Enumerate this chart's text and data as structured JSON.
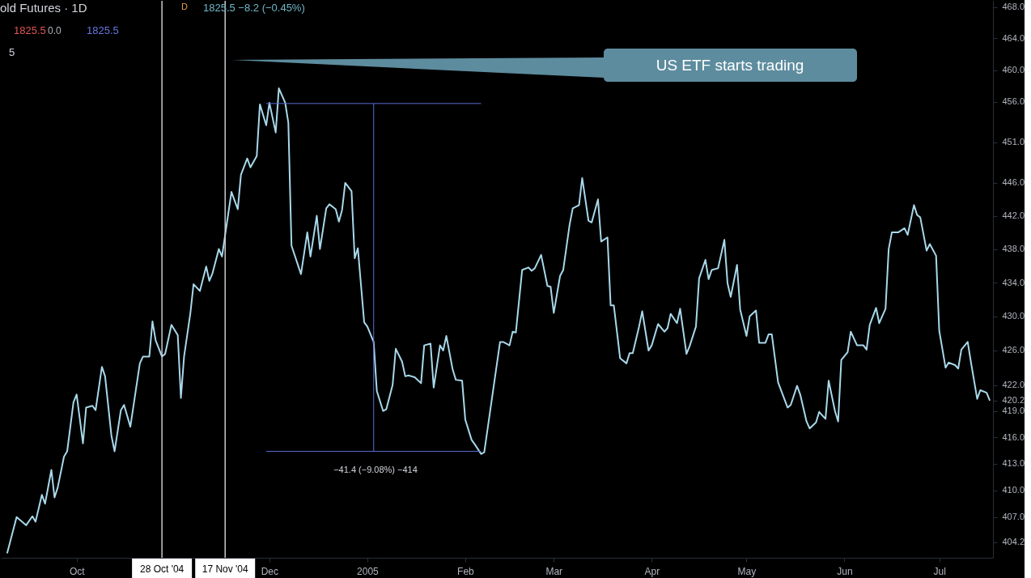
{
  "chart_data": {
    "type": "line",
    "log": "y",
    "xlim": [
      "2004-09-07",
      "2005-07-18"
    ],
    "xticks": [
      {
        "value": "2004-10-01",
        "label": "Oct"
      },
      {
        "value": "2004-12-01",
        "label": "Dec"
      },
      {
        "value": "2005-01-01",
        "label": "2005"
      },
      {
        "value": "2005-02-01",
        "label": "Feb"
      },
      {
        "value": "2005-03-01",
        "label": "Mar"
      },
      {
        "value": "2005-04-01",
        "label": "Apr"
      },
      {
        "value": "2005-05-01",
        "label": "May"
      },
      {
        "value": "2005-06-01",
        "label": "Jun"
      },
      {
        "value": "2005-07-01",
        "label": "Jul"
      }
    ],
    "ylim": [
      402.5,
      468.8
    ],
    "yticks": [
      {
        "value": 404.2,
        "label": "404.2"
      },
      {
        "value": 407,
        "label": "407.0"
      },
      {
        "value": 410,
        "label": "410.0"
      },
      {
        "value": 413,
        "label": "413.0"
      },
      {
        "value": 416,
        "label": "416.0"
      },
      {
        "value": 419,
        "label": "419.0"
      },
      {
        "value": 420.2,
        "label": "420.2"
      },
      {
        "value": 422,
        "label": "422.0"
      },
      {
        "value": 426,
        "label": "426.0"
      },
      {
        "value": 430,
        "label": "430.0"
      },
      {
        "value": 434,
        "label": "434.0"
      },
      {
        "value": 438,
        "label": "438.0"
      },
      {
        "value": 442,
        "label": "442.0"
      },
      {
        "value": 446,
        "label": "446.0"
      },
      {
        "value": 451,
        "label": "451.0"
      },
      {
        "value": 456,
        "label": "456.0"
      },
      {
        "value": 460,
        "label": "460.0"
      },
      {
        "value": 464,
        "label": "464.0"
      },
      {
        "value": 468,
        "label": "468.0"
      }
    ],
    "series": [
      {
        "color": "#a8d8ea",
        "x": [
          "2004-09-09",
          "2004-09-12",
          "2004-09-15",
          "2004-09-17",
          "2004-09-18",
          "2004-09-20",
          "2004-09-21",
          "2004-09-23",
          "2004-09-24",
          "2004-09-25",
          "2004-09-27",
          "2004-09-28",
          "2004-09-30",
          "2004-10-01",
          "2004-10-03",
          "2004-10-04",
          "2004-10-06",
          "2004-10-07",
          "2004-10-09",
          "2004-10-10",
          "2004-10-12",
          "2004-10-13",
          "2004-10-15",
          "2004-10-16",
          "2004-10-18",
          "2004-10-21",
          "2004-10-22",
          "2004-10-24",
          "2004-10-25",
          "2004-10-26",
          "2004-10-28",
          "2004-10-29",
          "2004-10-31",
          "2004-11-02",
          "2004-11-03",
          "2004-11-04",
          "2004-11-06",
          "2004-11-07",
          "2004-11-09",
          "2004-11-11",
          "2004-11-12",
          "2004-11-13",
          "2004-11-15",
          "2004-11-16",
          "2004-11-19",
          "2004-11-21",
          "2004-11-22",
          "2004-11-24",
          "2004-11-25",
          "2004-11-27",
          "2004-11-28",
          "2004-11-30",
          "2004-12-01",
          "2004-12-03",
          "2004-12-04",
          "2004-12-06",
          "2004-12-07",
          "2004-12-08",
          "2004-12-11",
          "2004-12-13",
          "2004-12-14",
          "2004-12-16",
          "2004-12-17",
          "2004-12-19",
          "2004-12-20",
          "2004-12-22",
          "2004-12-23",
          "2004-12-24",
          "2004-12-25",
          "2004-12-27",
          "2004-12-28",
          "2004-12-29",
          "2004-12-31",
          "2005-01-01",
          "2005-01-03",
          "2005-01-04",
          "2005-01-06",
          "2005-01-07",
          "2005-01-09",
          "2005-01-10",
          "2005-01-12",
          "2005-01-13",
          "2005-01-14",
          "2005-01-16",
          "2005-01-18",
          "2005-01-19",
          "2005-01-21",
          "2005-01-22",
          "2005-01-24",
          "2005-01-25",
          "2005-01-26",
          "2005-01-28",
          "2005-01-29",
          "2005-01-31",
          "2005-02-01",
          "2005-02-03",
          "2005-02-04",
          "2005-02-06",
          "2005-02-07",
          "2005-02-12",
          "2005-02-13",
          "2005-02-15",
          "2005-02-16",
          "2005-02-17",
          "2005-02-19",
          "2005-02-21",
          "2005-02-22",
          "2005-02-23",
          "2005-02-25",
          "2005-02-27",
          "2005-02-28",
          "2005-03-01",
          "2005-03-03",
          "2005-03-04",
          "2005-03-06",
          "2005-03-07",
          "2005-03-09",
          "2005-03-10",
          "2005-03-12",
          "2005-03-13",
          "2005-03-15",
          "2005-03-16",
          "2005-03-18",
          "2005-03-19",
          "2005-03-20",
          "2005-03-22",
          "2005-03-24",
          "2005-03-25",
          "2005-03-26",
          "2005-03-28",
          "2005-03-29",
          "2005-03-31",
          "2005-04-01",
          "2005-04-03",
          "2005-04-05",
          "2005-04-06",
          "2005-04-07",
          "2005-04-09",
          "2005-04-10",
          "2005-04-12",
          "2005-04-13",
          "2005-04-15",
          "2005-04-16",
          "2005-04-18",
          "2005-04-19",
          "2005-04-20",
          "2005-04-22",
          "2005-04-24",
          "2005-04-25",
          "2005-04-26",
          "2005-04-28",
          "2005-04-29",
          "2005-05-01",
          "2005-05-02",
          "2005-05-04",
          "2005-05-05",
          "2005-05-07",
          "2005-05-08",
          "2005-05-09",
          "2005-05-11",
          "2005-05-14",
          "2005-05-15",
          "2005-05-17",
          "2005-05-18",
          "2005-05-20",
          "2005-05-21",
          "2005-05-23",
          "2005-05-24",
          "2005-05-26",
          "2005-05-27",
          "2005-05-29",
          "2005-05-30",
          "2005-05-31",
          "2005-06-02",
          "2005-06-03",
          "2005-06-05",
          "2005-06-07",
          "2005-06-08",
          "2005-06-09",
          "2005-06-11",
          "2005-06-12",
          "2005-06-14",
          "2005-06-15",
          "2005-06-16",
          "2005-06-18",
          "2005-06-20",
          "2005-06-21",
          "2005-06-23",
          "2005-06-24",
          "2005-06-25",
          "2005-06-27",
          "2005-06-28",
          "2005-06-30",
          "2005-07-01",
          "2005-07-03",
          "2005-07-04",
          "2005-07-06",
          "2005-07-07",
          "2005-07-08",
          "2005-07-10",
          "2005-07-11",
          "2005-07-13",
          "2005-07-14",
          "2005-07-16",
          "2005-07-17"
        ],
        "values": [
          403.0,
          407.0,
          406.1,
          407.1,
          406.5,
          409.5,
          408.5,
          412.3,
          409.2,
          410.3,
          413.8,
          414.4,
          420.0,
          420.9,
          415.3,
          419.4,
          419.6,
          419.1,
          424.1,
          423.0,
          416.2,
          414.4,
          419.1,
          419.7,
          417.2,
          424.5,
          425.3,
          425.3,
          429.4,
          427.2,
          425.3,
          425.6,
          429.0,
          427.8,
          420.5,
          425.3,
          430.4,
          433.8,
          433.0,
          435.9,
          434.2,
          435.1,
          438.0,
          437.1,
          444.9,
          442.8,
          447.0,
          449.0,
          447.9,
          449.3,
          455.7,
          453.1,
          455.9,
          452.2,
          457.7,
          455.9,
          453.4,
          438.4,
          435.0,
          440.0,
          437.1,
          442.0,
          438.0,
          442.9,
          443.4,
          442.8,
          441.3,
          442.7,
          446.0,
          445.0,
          436.9,
          438.1,
          429.3,
          428.8,
          427.0,
          421.3,
          419.0,
          419.2,
          422.0,
          426.2,
          424.7,
          423.0,
          423.1,
          422.9,
          422.2,
          426.6,
          426.8,
          421.7,
          426.6,
          426.0,
          427.7,
          423.8,
          422.6,
          422.5,
          418.0,
          415.7,
          415.2,
          414.1,
          414.3,
          427.0,
          427.0,
          426.6,
          428.2,
          428.1,
          435.5,
          435.8,
          435.4,
          435.7,
          437.3,
          433.6,
          433.5,
          430.4,
          434.8,
          435.5,
          440.9,
          442.9,
          443.3,
          446.6,
          441.4,
          441.2,
          444.0,
          438.9,
          439.4,
          431.3,
          431.3,
          425.1,
          424.5,
          425.7,
          425.7,
          428.8,
          430.6,
          426.0,
          426.6,
          429.1,
          428.2,
          428.6,
          430.3,
          429.2,
          430.9,
          425.6,
          426.5,
          428.8,
          434.5,
          436.7,
          434.4,
          435.5,
          435.7,
          439.1,
          433.9,
          432.3,
          436.1,
          430.8,
          427.7,
          430.0,
          430.7,
          426.9,
          426.9,
          427.9,
          427.9,
          422.3,
          419.4,
          419.7,
          421.9,
          420.9,
          417.8,
          417.0,
          417.7,
          418.9,
          418.1,
          422.5,
          419.0,
          417.8,
          424.9,
          425.8,
          428.2,
          426.6,
          426.6,
          426.1,
          429.0,
          431.0,
          429.2,
          430.9,
          438.0,
          440.0,
          440.0,
          440.5,
          439.7,
          443.3,
          442.1,
          441.8,
          437.8,
          438.6,
          437.2,
          428.3,
          424.0,
          424.6,
          424.3,
          423.9,
          426.1,
          427.0,
          424.7,
          420.4,
          421.4,
          421.1,
          420.2
        ]
      },
      {
        "type": "line",
        "color": "#5b6cd6",
        "x": [
          "2004-11-30",
          "2005-02-06"
        ],
        "values": [
          455.8,
          455.8
        ]
      },
      {
        "type": "line",
        "color": "#5b6cd6",
        "x": [
          "2004-11-30",
          "2005-02-06"
        ],
        "values": [
          414.4,
          414.4
        ]
      },
      {
        "type": "line",
        "color": "#5b6cd6",
        "x": [
          "2005-01-03",
          "2005-01-03"
        ],
        "values": [
          455.8,
          414.4
        ]
      }
    ],
    "ref_lines": [
      {
        "axis": "x",
        "value": "2004-10-28",
        "label": "28 Oct '04",
        "color": "#c8cad0"
      },
      {
        "axis": "x",
        "value": "2004-11-17",
        "label": "17 Nov '04",
        "color": "#c8cad0"
      }
    ],
    "annotations": [
      "old Futures · 1D",
      "D",
      "1825.5 −8.2 (−0.45%)",
      "1825.5",
      "0.0",
      "1825.5",
      "5",
      "US ETF starts trading",
      "−41.4 (−9.08%) −414"
    ]
  }
}
